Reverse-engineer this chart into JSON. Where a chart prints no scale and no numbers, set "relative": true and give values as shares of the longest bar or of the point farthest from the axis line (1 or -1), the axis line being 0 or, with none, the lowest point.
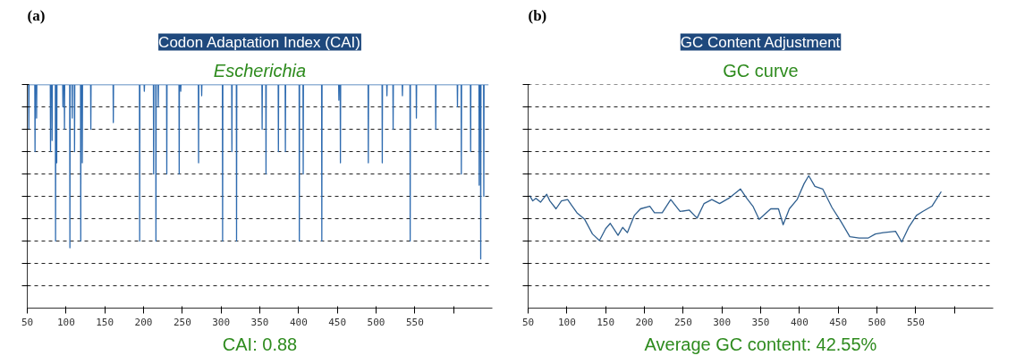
{
  "chart_data": [
    {
      "type": "line",
      "title": "Codon Adaptation Index (CAI)",
      "subtitle": "Escherichia",
      "relative": true,
      "annotations": [
        "(a)",
        "CAI: 0.88"
      ],
      "grid": "y",
      "marker": "none",
      "line_style": "solid",
      "xlim": [
        50,
        650
      ],
      "xticks": [
        50,
        100,
        150,
        200,
        250,
        300,
        350,
        400,
        450,
        500,
        550,
        {
          "value": 600,
          "label": null
        }
      ],
      "series": [
        {
          "color": "#2e6bb0",
          "x": [
            50,
            51.7,
            52,
            52.3,
            59.7,
            60,
            60.3,
            61.7,
            62,
            62.3,
            79.7,
            80,
            80.3,
            81.7,
            82,
            82.3,
            86.2,
            86.5,
            86.8,
            87.7,
            88,
            88.3,
            95.7,
            96,
            96.3,
            97.7,
            98,
            98.3,
            104.7,
            105,
            105.3,
            107.7,
            108,
            108.3,
            110.7,
            111,
            111.3,
            118.7,
            119,
            119.3,
            120.7,
            121,
            121.3,
            131.7,
            132,
            132.3,
            160.7,
            161,
            161.3,
            194.7,
            195,
            195.3,
            200.7,
            201,
            201.3,
            212.7,
            213,
            213.3,
            215.7,
            216,
            216.3,
            218.7,
            219,
            219.3,
            229.7,
            230,
            230.3,
            245.7,
            246,
            246.3,
            247.7,
            248,
            248.3,
            270.7,
            271,
            271.3,
            274.7,
            275,
            275.3,
            301.7,
            302,
            302.3,
            313.7,
            314,
            314.3,
            319.7,
            320,
            320.3,
            352.7,
            353,
            353.3,
            357.7,
            358,
            358.3,
            373.7,
            374,
            374.3,
            382.7,
            383,
            383.3,
            400.7,
            401,
            401.3,
            405.7,
            406,
            406.3,
            429.7,
            430,
            430.3,
            451.7,
            452,
            452.3,
            453.7,
            454,
            454.3,
            489.7,
            490,
            490.3,
            507.7,
            508,
            508.3,
            513.7,
            514,
            514.3,
            521.7,
            522,
            522.3,
            533.7,
            534,
            534.3,
            543.7,
            544,
            544.3,
            551.7,
            552,
            552.3,
            576.7,
            577,
            577.3,
            604.7,
            605,
            605.3,
            609.7,
            610,
            610.3,
            621.7,
            622,
            622.3,
            632.7,
            633,
            633.3,
            634.7,
            635,
            635.3,
            638.7,
            639,
            639.3,
            645
          ],
          "values": [
            1,
            1,
            0.8,
            1,
            1,
            0.7,
            1,
            1,
            0.85,
            1,
            1,
            0.7,
            1,
            1,
            0.75,
            1,
            1,
            0.3,
            1,
            1,
            0.65,
            1,
            1,
            0.9,
            1,
            1,
            0.8,
            1,
            1,
            0.27,
            1,
            1,
            0.85,
            1,
            1,
            0.7,
            1,
            1,
            0.3,
            1,
            1,
            0.65,
            1,
            1,
            0.8,
            1,
            1,
            0.83,
            1,
            1,
            0.3,
            1,
            1,
            0.97,
            1,
            1,
            0.6,
            1,
            1,
            0.3,
            1,
            1,
            0.9,
            1,
            1,
            0.6,
            1,
            1,
            0.6,
            1,
            1,
            0.97,
            1,
            1,
            0.65,
            1,
            1,
            0.95,
            1,
            1,
            0.3,
            1,
            1,
            0.7,
            1,
            1,
            0.3,
            1,
            1,
            0.8,
            1,
            1,
            0.6,
            1,
            1,
            0.7,
            1,
            1,
            0.7,
            1,
            1,
            0.3,
            1,
            1,
            0.6,
            1,
            1,
            0.3,
            1,
            1,
            0.93,
            1,
            1,
            0.65,
            1,
            1,
            0.65,
            1,
            1,
            0.65,
            1,
            1,
            0.95,
            1,
            1,
            0.8,
            1,
            1,
            0.95,
            1,
            1,
            0.3,
            1,
            1,
            0.85,
            1,
            1,
            0.8,
            1,
            1,
            0.9,
            1,
            1,
            0.6,
            1,
            1,
            0.7,
            1,
            1,
            0.55,
            1,
            1,
            0.22,
            1,
            1,
            0.5,
            1,
            1
          ]
        }
      ]
    },
    {
      "type": "line",
      "title": "GC Content Adjustment",
      "subtitle": "GC curve",
      "relative": true,
      "annotations": [
        "(b)",
        "Average GC content: 42.55%"
      ],
      "grid": "y",
      "marker": "none",
      "line_style": "solid",
      "xlim": [
        50,
        650
      ],
      "xticks": [
        50,
        100,
        150,
        200,
        250,
        300,
        350,
        400,
        450,
        500,
        550,
        {
          "value": 600,
          "label": null
        }
      ],
      "series": [
        {
          "color": "#2f5f8f",
          "x": [
            52,
            56,
            60,
            66,
            74,
            78,
            86,
            93,
            101,
            107,
            113,
            123,
            133,
            142,
            150,
            156,
            166,
            172,
            178,
            187,
            195,
            207,
            213,
            223,
            234,
            246,
            258,
            268,
            277,
            287,
            297,
            309,
            324,
            332,
            340,
            348,
            363,
            373,
            379,
            387,
            397,
            406,
            412,
            420,
            430,
            442,
            453,
            465,
            477,
            489,
            498,
            508,
            524,
            532,
            541,
            551,
            559,
            571,
            583
          ],
          "values": [
            0.85,
            0.81,
            0.83,
            0.8,
            0.86,
            0.81,
            0.75,
            0.81,
            0.82,
            0.77,
            0.72,
            0.67,
            0.56,
            0.51,
            0.6,
            0.64,
            0.55,
            0.61,
            0.57,
            0.7,
            0.75,
            0.77,
            0.72,
            0.72,
            0.82,
            0.73,
            0.74,
            0.68,
            0.79,
            0.82,
            0.79,
            0.83,
            0.9,
            0.83,
            0.77,
            0.67,
            0.75,
            0.75,
            0.63,
            0.75,
            0.82,
            0.94,
            1,
            0.92,
            0.9,
            0.76,
            0.66,
            0.54,
            0.53,
            0.53,
            0.56,
            0.57,
            0.58,
            0.5,
            0.61,
            0.7,
            0.73,
            0.77,
            0.88
          ]
        }
      ]
    }
  ]
}
